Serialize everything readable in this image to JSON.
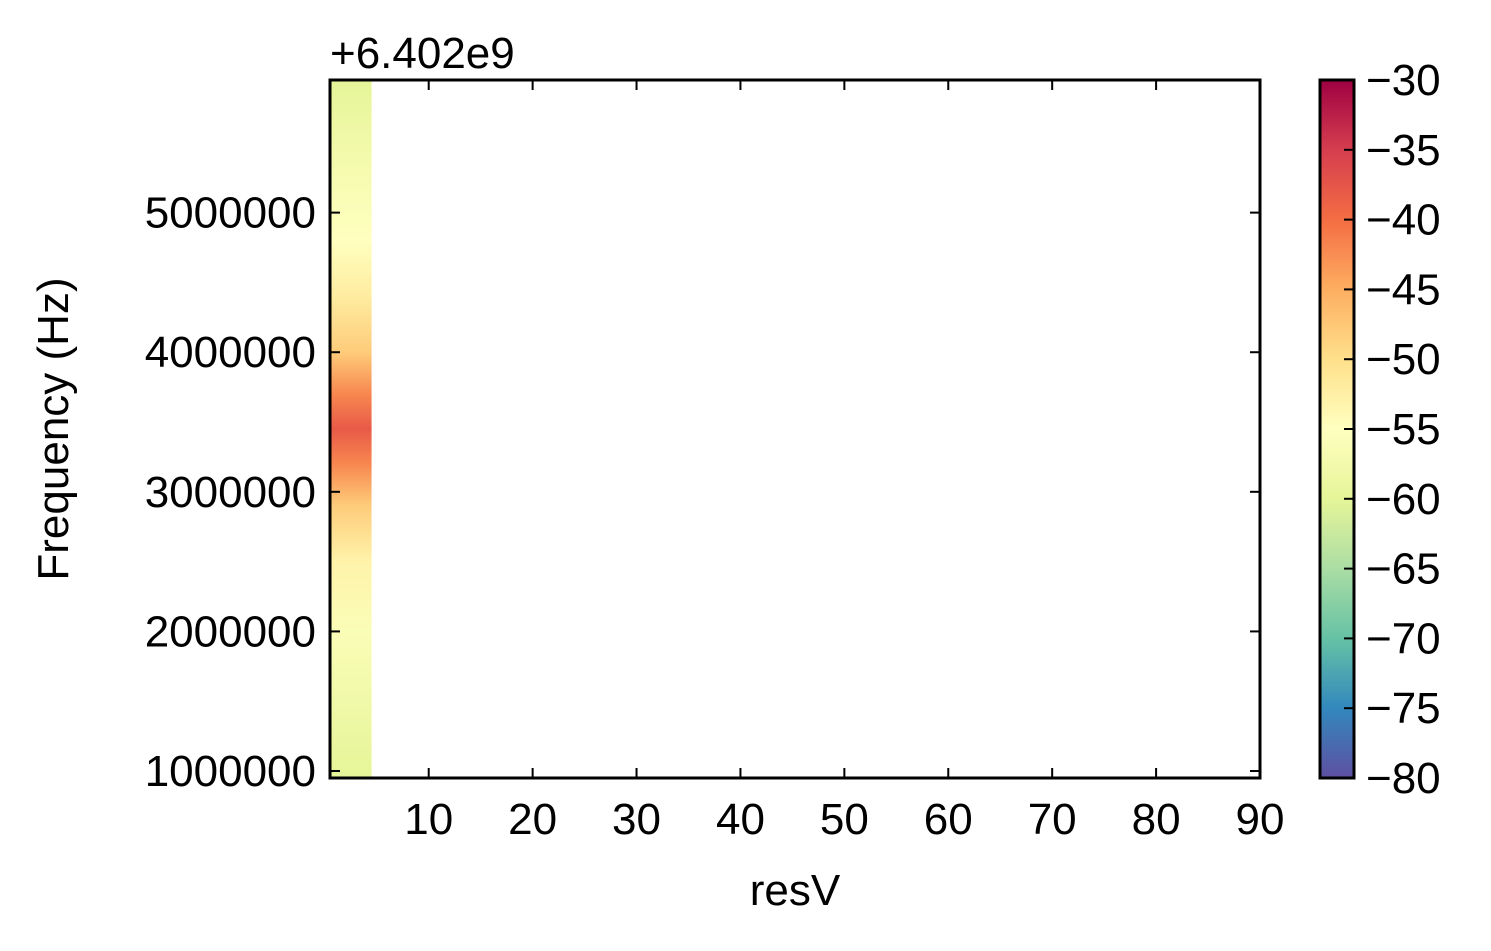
{
  "chart_data": {
    "type": "heatmap",
    "title": "",
    "xlabel": "resV",
    "ylabel": "Frequency (Hz)",
    "y_offset_label": "+6.402e9",
    "xlim": [
      0.5,
      90
    ],
    "ylim": [
      950000,
      5950000
    ],
    "xticks": [
      10,
      20,
      30,
      40,
      50,
      60,
      70,
      80,
      90
    ],
    "yticks": [
      1000000,
      2000000,
      3000000,
      4000000,
      5000000
    ],
    "x_tick_labels": [
      "10",
      "20",
      "30",
      "40",
      "50",
      "60",
      "70",
      "80",
      "90"
    ],
    "y_tick_labels": [
      "1000000",
      "2000000",
      "3000000",
      "4000000",
      "5000000"
    ],
    "colormap": "Spectral_r",
    "colorbar": {
      "vmin": -80,
      "vmax": -30,
      "ticks": [
        -80,
        -75,
        -70,
        -65,
        -60,
        -55,
        -50,
        -45,
        -40,
        -35,
        -30
      ],
      "tick_labels": [
        "−80",
        "−75",
        "−70",
        "−65",
        "−60",
        "−55",
        "−50",
        "−45",
        "−40",
        "−35",
        "−30"
      ]
    },
    "data_column": {
      "x_start": 0.5,
      "x_end": 4.5,
      "points": [
        {
          "y": 950000,
          "value": -60
        },
        {
          "y": 1500000,
          "value": -58
        },
        {
          "y": 2000000,
          "value": -56
        },
        {
          "y": 2500000,
          "value": -53
        },
        {
          "y": 2900000,
          "value": -48
        },
        {
          "y": 3200000,
          "value": -42
        },
        {
          "y": 3450000,
          "value": -38
        },
        {
          "y": 3700000,
          "value": -42
        },
        {
          "y": 4000000,
          "value": -48
        },
        {
          "y": 4400000,
          "value": -52
        },
        {
          "y": 4800000,
          "value": -55
        },
        {
          "y": 5300000,
          "value": -57
        },
        {
          "y": 5950000,
          "value": -60
        }
      ]
    },
    "grid": false
  }
}
